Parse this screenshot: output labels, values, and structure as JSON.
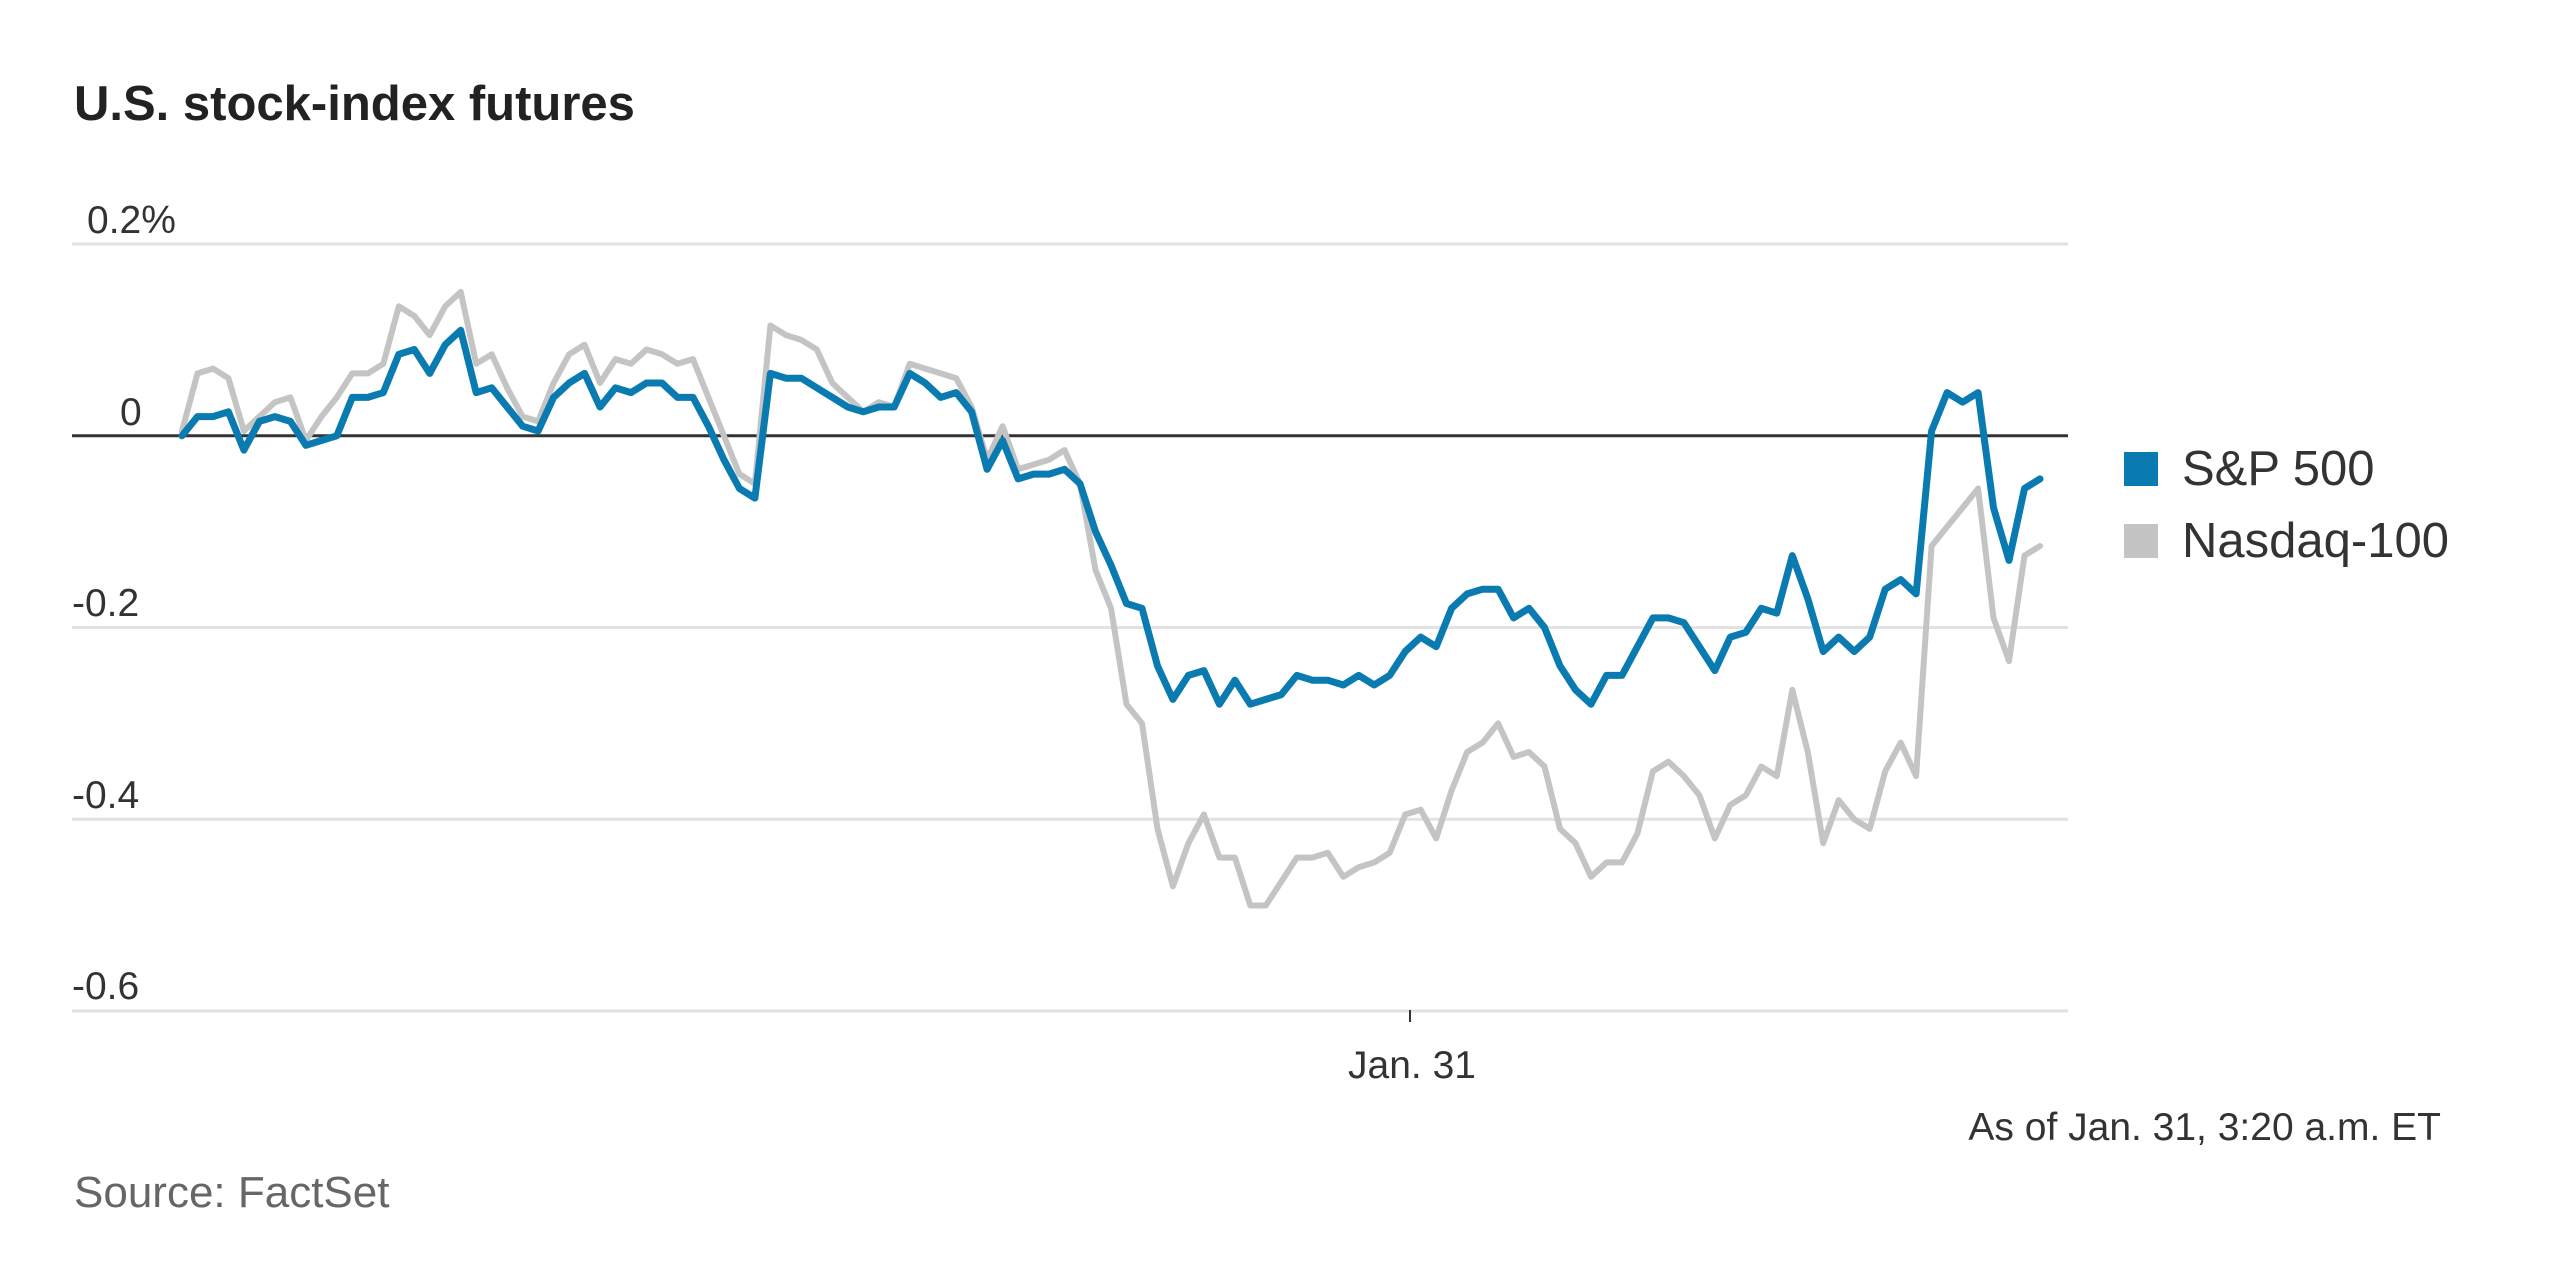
{
  "chart_data": {
    "type": "line",
    "title": "U.S. stock-index futures",
    "y_ticks": [
      "0.2%",
      "0",
      "-0.2",
      "-0.4",
      "-0.6"
    ],
    "y_tick_values": [
      0.2,
      0,
      -0.2,
      -0.4,
      -0.6
    ],
    "ylim": [
      -0.6,
      0.2
    ],
    "x_labels": [
      "Jan. 31"
    ],
    "grid": "horizontal",
    "legend": "right",
    "annotation": "As of Jan. 31, 3:20 a.m. ET",
    "source": "Source: FactSet",
    "series": [
      {
        "name": "S&P 500",
        "color": "#0a7bb0",
        "values": [
          0.0,
          0.02,
          0.02,
          0.025,
          -0.015,
          0.015,
          0.02,
          0.015,
          -0.01,
          -0.005,
          0.0,
          0.04,
          0.04,
          0.045,
          0.085,
          0.09,
          0.065,
          0.095,
          0.11,
          0.045,
          0.05,
          0.03,
          0.01,
          0.005,
          0.04,
          0.055,
          0.065,
          0.03,
          0.05,
          0.045,
          0.055,
          0.055,
          0.04,
          0.04,
          0.01,
          -0.025,
          -0.055,
          -0.065,
          0.065,
          0.06,
          0.06,
          0.05,
          0.04,
          0.03,
          0.025,
          0.03,
          0.03,
          0.065,
          0.055,
          0.04,
          0.045,
          0.025,
          -0.035,
          -0.005,
          -0.045,
          -0.04,
          -0.04,
          -0.035,
          -0.05,
          -0.1,
          -0.135,
          -0.175,
          -0.18,
          -0.24,
          -0.275,
          -0.25,
          -0.245,
          -0.28,
          -0.255,
          -0.28,
          -0.275,
          -0.27,
          -0.25,
          -0.255,
          -0.255,
          -0.26,
          -0.25,
          -0.26,
          -0.25,
          -0.225,
          -0.21,
          -0.22,
          -0.18,
          -0.165,
          -0.16,
          -0.16,
          -0.19,
          -0.18,
          -0.2,
          -0.24,
          -0.265,
          -0.28,
          -0.25,
          -0.25,
          -0.22,
          -0.19,
          -0.19,
          -0.195,
          -0.22,
          -0.245,
          -0.21,
          -0.205,
          -0.18,
          -0.185,
          -0.125,
          -0.17,
          -0.225,
          -0.21,
          -0.225,
          -0.21,
          -0.16,
          -0.15,
          -0.165,
          0.005,
          0.045,
          0.035,
          0.045,
          -0.075,
          -0.13,
          -0.055,
          -0.045
        ]
      },
      {
        "name": "Nasdaq-100",
        "color": "#c4c4c4",
        "values": [
          0.005,
          0.065,
          0.07,
          0.06,
          0.005,
          0.02,
          0.035,
          0.04,
          -0.005,
          0.02,
          0.04,
          0.065,
          0.065,
          0.075,
          0.135,
          0.125,
          0.105,
          0.135,
          0.15,
          0.075,
          0.085,
          0.05,
          0.02,
          0.015,
          0.055,
          0.085,
          0.095,
          0.055,
          0.08,
          0.075,
          0.09,
          0.085,
          0.075,
          0.08,
          0.04,
          0.0,
          -0.04,
          -0.05,
          0.115,
          0.105,
          0.1,
          0.09,
          0.055,
          0.04,
          0.025,
          0.035,
          0.03,
          0.075,
          0.07,
          0.065,
          0.06,
          0.03,
          -0.025,
          0.01,
          -0.035,
          -0.03,
          -0.025,
          -0.015,
          -0.05,
          -0.14,
          -0.18,
          -0.28,
          -0.3,
          -0.41,
          -0.47,
          -0.425,
          -0.395,
          -0.44,
          -0.44,
          -0.49,
          -0.49,
          -0.465,
          -0.44,
          -0.44,
          -0.435,
          -0.46,
          -0.45,
          -0.445,
          -0.435,
          -0.395,
          -0.39,
          -0.42,
          -0.37,
          -0.33,
          -0.32,
          -0.3,
          -0.335,
          -0.33,
          -0.345,
          -0.41,
          -0.425,
          -0.46,
          -0.445,
          -0.445,
          -0.415,
          -0.35,
          -0.34,
          -0.355,
          -0.375,
          -0.42,
          -0.385,
          -0.375,
          -0.345,
          -0.355,
          -0.265,
          -0.33,
          -0.425,
          -0.38,
          -0.4,
          -0.41,
          -0.35,
          -0.32,
          -0.355,
          -0.115,
          -0.095,
          -0.075,
          -0.055,
          -0.19,
          -0.235,
          -0.125,
          -0.115
        ]
      }
    ]
  },
  "title_text": "U.S. stock-index futures",
  "legend": {
    "sp500": "S&P 500",
    "nasdaq": "Nasdaq-100"
  },
  "annotation_text": "As of Jan. 31, 3:20 a.m. ET",
  "source_text": "Source: FactSet"
}
